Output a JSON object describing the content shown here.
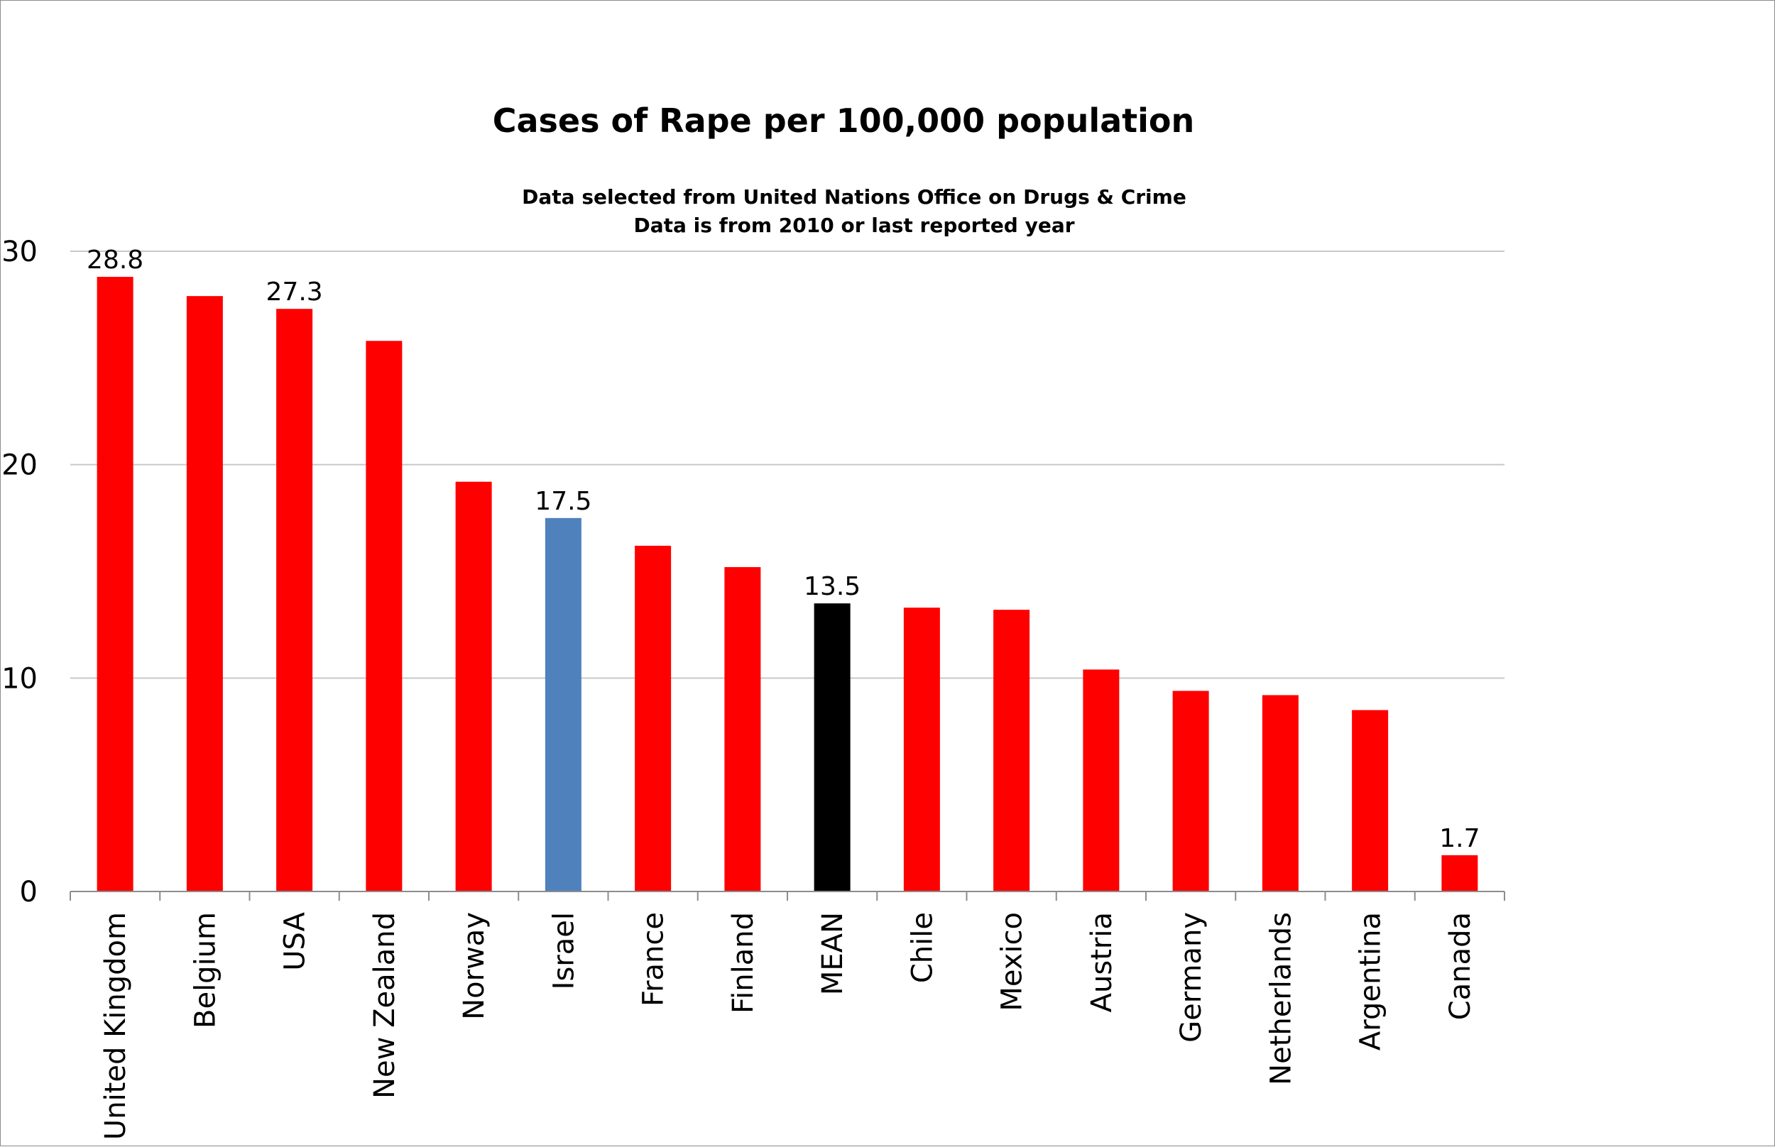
{
  "chart_data": {
    "type": "bar",
    "title": "Cases of Rape per 100,000 population",
    "subtitle_lines": [
      "Data selected from United Nations Office on Drugs & Crime",
      "Data is from 2010 or last reported year"
    ],
    "xlabel": "",
    "ylabel": "",
    "ylim": [
      0,
      30
    ],
    "yticks": [
      "0",
      "10",
      "20",
      "30"
    ],
    "grid": true,
    "categories": [
      "United Kingdom",
      "Belgium",
      "USA",
      "New Zealand",
      "Norway",
      "Israel",
      "France",
      "Finland",
      "MEAN",
      "Chile",
      "Mexico",
      "Austria",
      "Germany",
      "Netherlands",
      "Argentina",
      "Canada"
    ],
    "values": [
      28.8,
      27.9,
      27.3,
      25.8,
      19.2,
      17.5,
      16.2,
      15.2,
      13.5,
      13.3,
      13.2,
      10.4,
      9.4,
      9.2,
      8.5,
      1.7
    ],
    "data_labels": [
      "28.8",
      "",
      "27.3",
      "",
      "",
      "17.5",
      "",
      "",
      "13.5",
      "",
      "",
      "",
      "",
      "",
      "",
      "1.7"
    ],
    "colors": {
      "default": "#ff0000",
      "Israel": "#4f81bd",
      "MEAN": "#000000",
      "grid": "#c8c8c8",
      "axis": "#8c8c8c"
    }
  }
}
